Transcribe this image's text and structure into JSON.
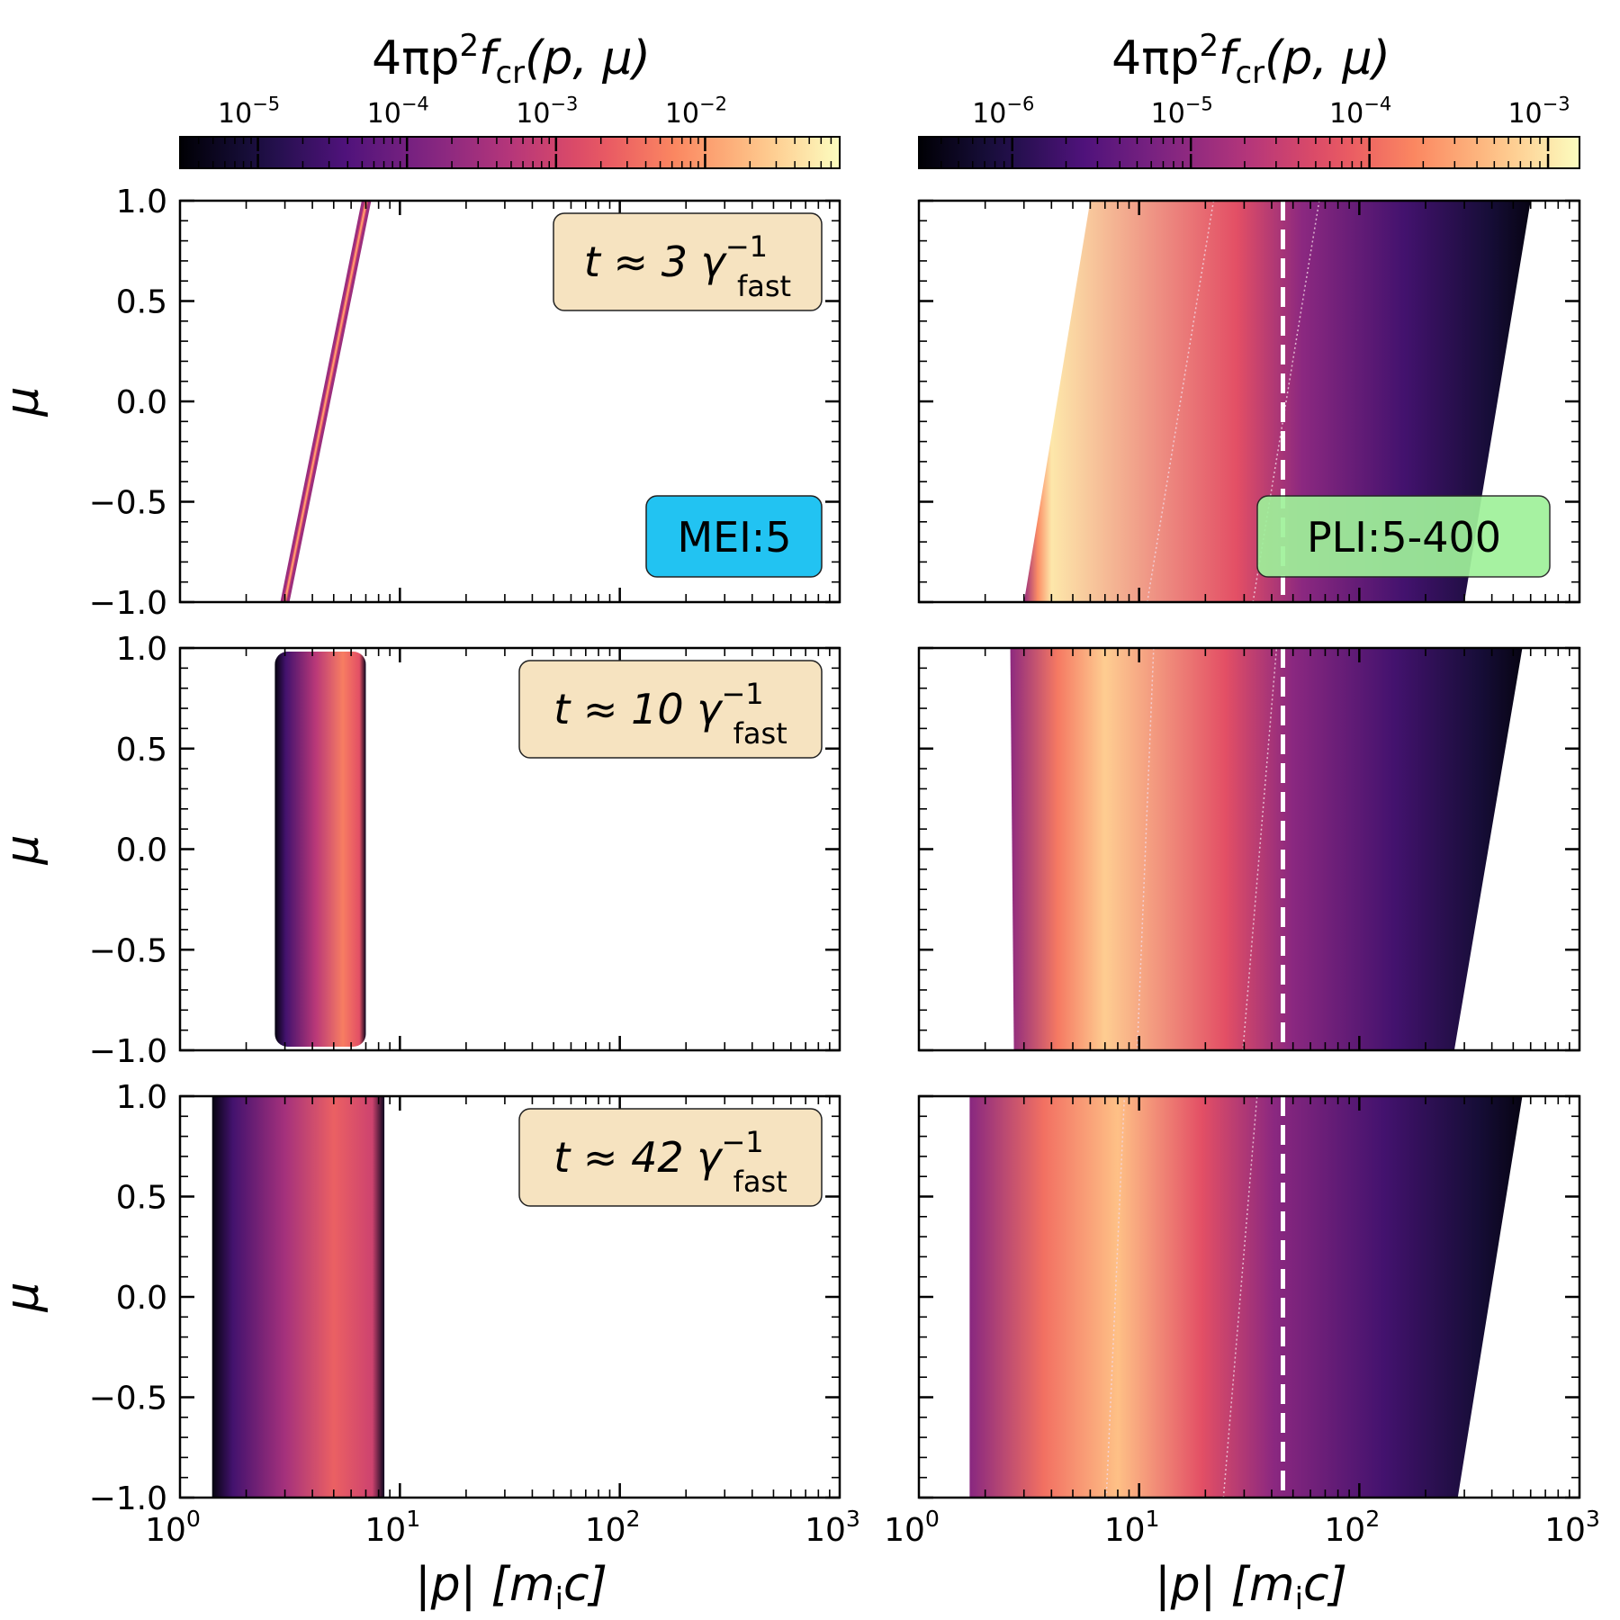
{
  "colors": {
    "mei_box": "#22c3f2",
    "pli_box": "#9ff19a",
    "time_box": "#f6e3c0",
    "dashed_line": "#ffffff"
  },
  "colormap": "magma",
  "chart_data": [
    {
      "type": "heatmap",
      "label": "MEI:5",
      "colorbar": {
        "title_base": "4πp",
        "title_sup": "2",
        "title_f": "f",
        "title_sub": "cr",
        "title_args": "(p, μ)",
        "scale": "log",
        "range": [
          3e-06,
          0.08
        ],
        "ticks": [
          {
            "value": 1e-05,
            "mantissa": "10",
            "exp": "−5"
          },
          {
            "value": 0.0001,
            "mantissa": "10",
            "exp": "−4"
          },
          {
            "value": 0.001,
            "mantissa": "10",
            "exp": "−3"
          },
          {
            "value": 0.01,
            "mantissa": "10",
            "exp": "−2"
          }
        ]
      },
      "xaxis": {
        "label_main": "|p| [m",
        "label_sub": "i",
        "label_end": "c]",
        "scale": "log",
        "range": [
          1,
          1000
        ],
        "ticks": [
          {
            "value": 1,
            "mantissa": "10",
            "exp": "0"
          },
          {
            "value": 10,
            "mantissa": "10",
            "exp": "1"
          },
          {
            "value": 100,
            "mantissa": "10",
            "exp": "2"
          },
          {
            "value": 1000,
            "mantissa": "10",
            "exp": "3"
          }
        ]
      },
      "yaxis": {
        "label": "μ",
        "range": [
          -1,
          1
        ],
        "ticks": [
          {
            "value": 1,
            "text": "1.0"
          },
          {
            "value": 0.5,
            "text": "0.5"
          },
          {
            "value": 0,
            "text": "0.0"
          },
          {
            "value": -0.5,
            "text": "−0.5"
          },
          {
            "value": -1,
            "text": "−1.0"
          }
        ]
      },
      "panels": [
        {
          "time_main": "t ≈ 3 γ",
          "time_sup": "−1",
          "time_sub": "fast",
          "shape": "band",
          "p_low_at_mu_minus1": 2.9,
          "p_low_at_mu_plus1": 6.8,
          "p_high_at_mu_minus1": 3.1,
          "p_high_at_mu_plus1": 7.3,
          "peak_log10_value": -2.0
        },
        {
          "time_main": "t ≈ 10 γ",
          "time_sup": "−1",
          "time_sub": "fast",
          "shape": "box",
          "p_min": 2.7,
          "p_max": 7.0,
          "p_peak": 5.5,
          "peak_log10_value": -2.3
        },
        {
          "time_main": "t ≈ 42 γ",
          "time_sup": "−1",
          "time_sub": "fast",
          "shape": "box",
          "p_min": 1.4,
          "p_max": 8.5,
          "p_peak": 5.0,
          "peak_log10_value": -2.6
        }
      ]
    },
    {
      "type": "heatmap",
      "label": "PLI:5-400",
      "colorbar": {
        "title_base": "4πp",
        "title_sup": "2",
        "title_f": "f",
        "title_sub": "cr",
        "title_args": "(p, μ)",
        "scale": "log",
        "range": [
          3e-07,
          0.0015
        ],
        "ticks": [
          {
            "value": 1e-06,
            "mantissa": "10",
            "exp": "−6"
          },
          {
            "value": 1e-05,
            "mantissa": "10",
            "exp": "−5"
          },
          {
            "value": 0.0001,
            "mantissa": "10",
            "exp": "−4"
          },
          {
            "value": 0.001,
            "mantissa": "10",
            "exp": "−3"
          }
        ]
      },
      "xaxis": {
        "label_main": "|p| [m",
        "label_sub": "i",
        "label_end": "c]",
        "scale": "log",
        "range": [
          1,
          1000
        ],
        "ticks": [
          {
            "value": 1,
            "mantissa": "10",
            "exp": "0"
          },
          {
            "value": 10,
            "mantissa": "10",
            "exp": "1"
          },
          {
            "value": 100,
            "mantissa": "10",
            "exp": "2"
          },
          {
            "value": 1000,
            "mantissa": "10",
            "exp": "3"
          }
        ]
      },
      "dashed_line_p": 45,
      "panels": [
        {
          "shape": "power-law",
          "p_min_at_mu_minus1": 3.0,
          "p_min_at_mu_plus1": 6.0,
          "p_max_at_mu_minus1": 300,
          "p_max_at_mu_plus1": 600,
          "peak_p": 4,
          "peak_log10_value": -3.0
        },
        {
          "shape": "power-law",
          "p_min_at_mu_minus1": 2.7,
          "p_min_at_mu_plus1": 2.6,
          "p_max_at_mu_minus1": 270,
          "p_max_at_mu_plus1": 550,
          "peak_p": 7,
          "peak_log10_value": -3.2
        },
        {
          "shape": "power-law",
          "p_min_at_mu_minus1": 1.7,
          "p_min_at_mu_plus1": 1.7,
          "p_max_at_mu_minus1": 280,
          "p_max_at_mu_plus1": 550,
          "peak_p": 8,
          "peak_log10_value": -3.3
        }
      ]
    }
  ]
}
